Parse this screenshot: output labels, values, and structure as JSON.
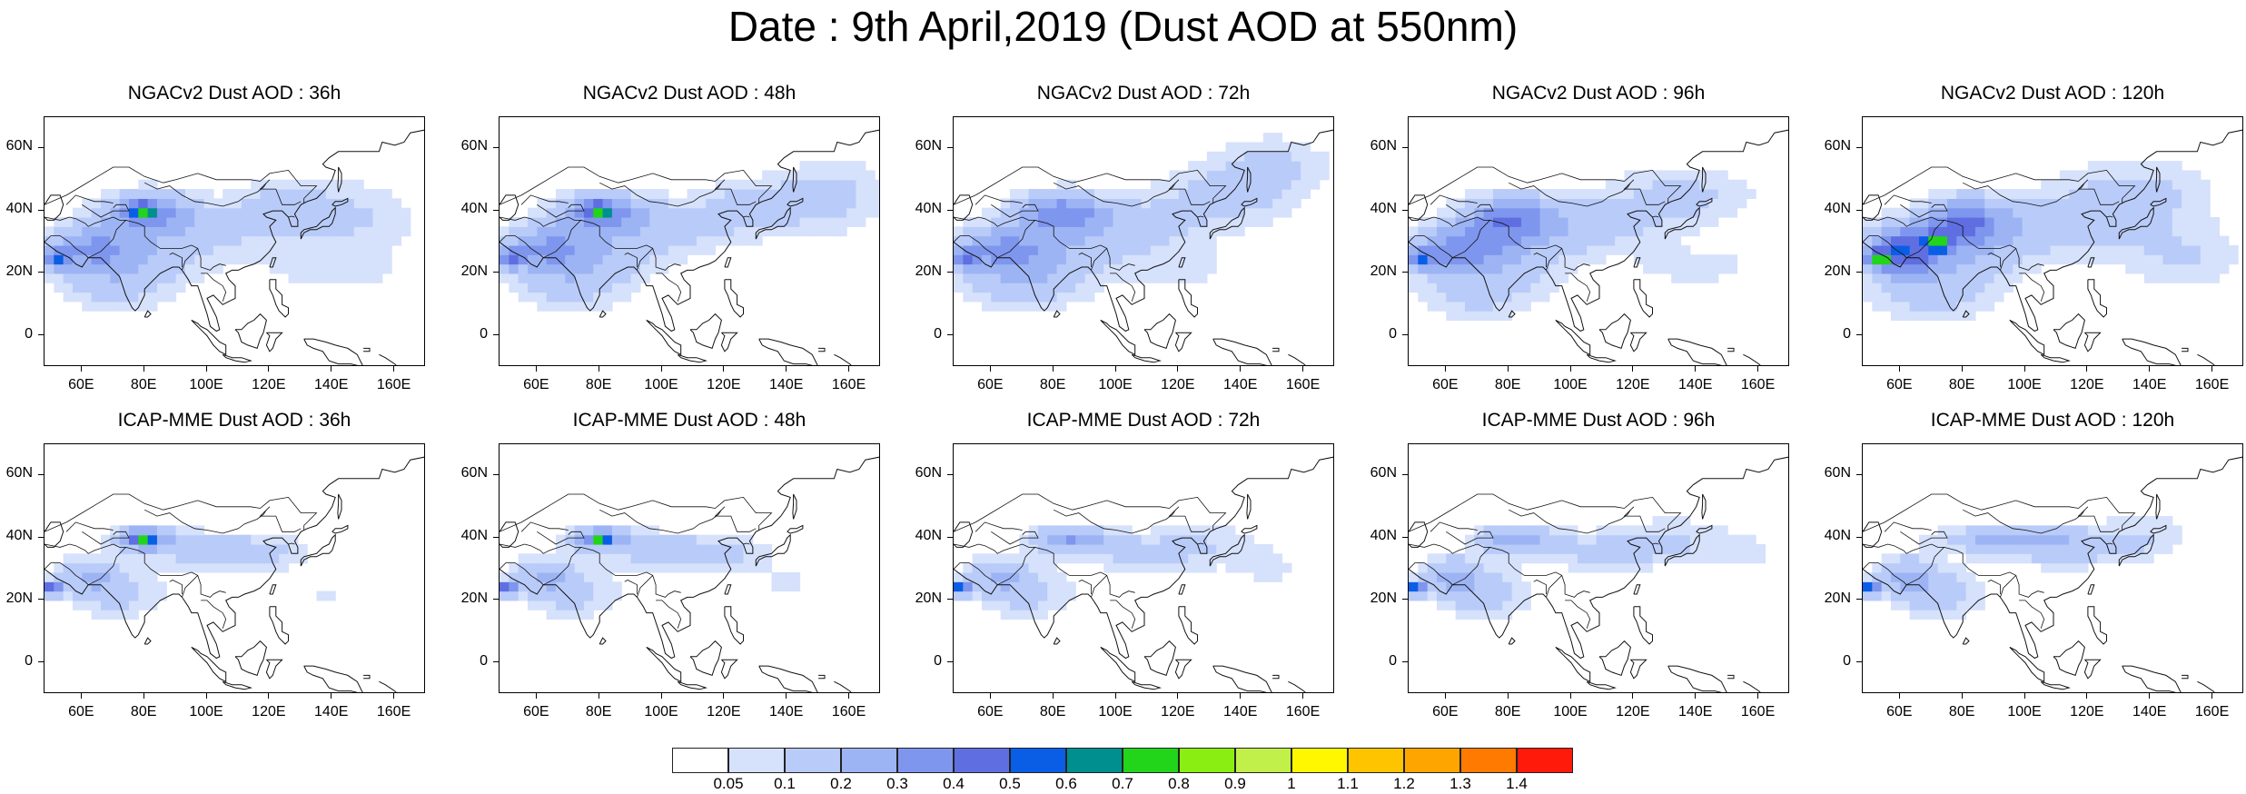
{
  "title": "Date : 9th April,2019 (Dust AOD at 550nm)",
  "panels": [
    {
      "title": "NGACv2 Dust AOD : 36h",
      "model": "NGACv2",
      "lead": "36h"
    },
    {
      "title": "NGACv2 Dust AOD : 48h",
      "model": "NGACv2",
      "lead": "48h"
    },
    {
      "title": "NGACv2 Dust AOD : 72h",
      "model": "NGACv2",
      "lead": "72h"
    },
    {
      "title": "NGACv2 Dust AOD : 96h",
      "model": "NGACv2",
      "lead": "96h"
    },
    {
      "title": "NGACv2 Dust AOD : 120h",
      "model": "NGACv2",
      "lead": "120h"
    },
    {
      "title": "ICAP-MME Dust AOD : 36h",
      "model": "ICAP-MME",
      "lead": "36h"
    },
    {
      "title": "ICAP-MME Dust AOD : 48h",
      "model": "ICAP-MME",
      "lead": "48h"
    },
    {
      "title": "ICAP-MME Dust AOD : 72h",
      "model": "ICAP-MME",
      "lead": "72h"
    },
    {
      "title": "ICAP-MME Dust AOD : 96h",
      "model": "ICAP-MME",
      "lead": "96h"
    },
    {
      "title": "ICAP-MME Dust AOD : 120h",
      "model": "ICAP-MME",
      "lead": "120h"
    }
  ],
  "axes": {
    "lat_ticks": [
      "60N",
      "40N",
      "20N",
      "0"
    ],
    "lat_values": [
      60,
      40,
      20,
      0
    ],
    "lon_ticks": [
      "60E",
      "80E",
      "100E",
      "120E",
      "140E",
      "160E"
    ],
    "lon_values": [
      60,
      80,
      100,
      120,
      140,
      160
    ],
    "lon_range": [
      48,
      170
    ],
    "lat_range": [
      -10,
      70
    ]
  },
  "colorbar": {
    "labels": [
      "0.05",
      "0.1",
      "0.2",
      "0.3",
      "0.4",
      "0.5",
      "0.6",
      "0.7",
      "0.8",
      "0.9",
      "1",
      "1.1",
      "1.2",
      "1.3",
      "1.4"
    ],
    "colors": [
      "#ffffff",
      "#d6e1fb",
      "#b9cbf8",
      "#9db4f4",
      "#7f96ee",
      "#5f6fe2",
      "#0a5ee6",
      "#008f8f",
      "#22d41a",
      "#8aee12",
      "#c2f04a",
      "#fff700",
      "#ffc400",
      "#ffa500",
      "#ff7a00",
      "#ff1a0a"
    ]
  }
}
